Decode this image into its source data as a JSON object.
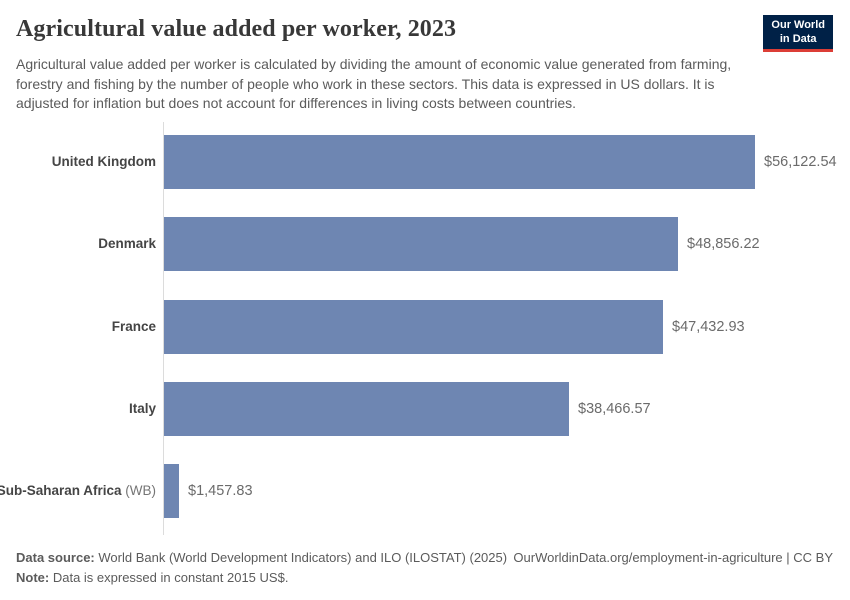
{
  "header": {
    "title": "Agricultural value added per worker, 2023",
    "subtitle": "Agricultural value added per worker is calculated by dividing the amount of economic value generated from farming, forestry and fishing by the number of people who work in these sectors. This data is expressed in US dollars. It is adjusted for inflation but does not account for differences in living costs between countries.",
    "logo": {
      "line1": "Our World",
      "line2": "in Data",
      "bg_color": "#002147",
      "accent_color": "#dc3e36"
    }
  },
  "chart_data": {
    "type": "bar",
    "orientation": "horizontal",
    "title": "Agricultural value added per worker, 2023",
    "categories": [
      "United Kingdom",
      "Denmark",
      "France",
      "Italy",
      "Sub-Saharan Africa (WB)"
    ],
    "values": [
      56122.54,
      48856.22,
      47432.93,
      38466.57,
      1457.83
    ],
    "value_labels": [
      "$56,122.54",
      "$48,856.22",
      "$47,432.93",
      "$38,466.57",
      "$1,457.83"
    ],
    "bars": [
      {
        "name": "United Kingdom",
        "suffix": "",
        "value": 56122.54,
        "label": "$56,122.54"
      },
      {
        "name": "Denmark",
        "suffix": "",
        "value": 48856.22,
        "label": "$48,856.22"
      },
      {
        "name": "France",
        "suffix": "",
        "value": 47432.93,
        "label": "$47,432.93"
      },
      {
        "name": "Italy",
        "suffix": "",
        "value": 38466.57,
        "label": "$38,466.57"
      },
      {
        "name": "Sub-Saharan Africa",
        "suffix": " (WB)",
        "value": 1457.83,
        "label": "$1,457.83"
      }
    ],
    "xlim": [
      0,
      56122.54
    ],
    "grid": false,
    "legend": "none",
    "bar_color": "#6e86b2"
  },
  "footer": {
    "data_source_label": "Data source:",
    "data_source": "World Bank (World Development Indicators) and ILO (ILOSTAT) (2025)",
    "attribution": "OurWorldinData.org/employment-in-agriculture | CC BY",
    "note_label": "Note:",
    "note": "Data is expressed in constant 2015 US$."
  }
}
